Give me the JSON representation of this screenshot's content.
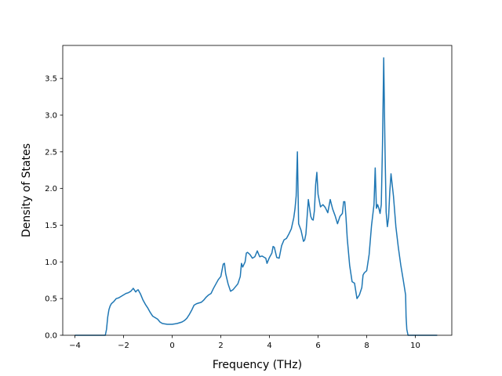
{
  "chart_data": {
    "type": "line",
    "title": "",
    "xlabel": "Frequency (THz)",
    "ylabel": "Density of States",
    "xlim": [
      -4.5,
      11.5
    ],
    "ylim": [
      0,
      3.95
    ],
    "x_ticks": [
      -4,
      -2,
      0,
      2,
      4,
      6,
      8,
      10
    ],
    "x_tick_labels": [
      "−4",
      "−2",
      "0",
      "2",
      "4",
      "6",
      "8",
      "10"
    ],
    "y_ticks": [
      0,
      0.5,
      1.0,
      1.5,
      2.0,
      2.5,
      3.0,
      3.5
    ],
    "y_tick_labels": [
      "0.0",
      "0.5",
      "1.0",
      "1.5",
      "2.0",
      "2.5",
      "3.0",
      "3.5"
    ],
    "grid": false,
    "legend": "none",
    "line_color": "#1f77b4",
    "series": [
      {
        "x": [
          -4.0,
          -3.5,
          -3.0,
          -2.75,
          -2.7,
          -2.65,
          -2.6,
          -2.55,
          -2.5,
          -2.4,
          -2.3,
          -2.2,
          -2.1,
          -2.0,
          -1.9,
          -1.8,
          -1.7,
          -1.6,
          -1.5,
          -1.45,
          -1.4,
          -1.3,
          -1.25,
          -1.2,
          -1.1,
          -1.0,
          -0.9,
          -0.8,
          -0.7,
          -0.6,
          -0.5,
          -0.4,
          -0.2,
          0.0,
          0.2,
          0.4,
          0.5,
          0.6,
          0.7,
          0.8,
          0.9,
          1.0,
          1.1,
          1.2,
          1.3,
          1.4,
          1.5,
          1.6,
          1.7,
          1.8,
          1.9,
          2.0,
          2.1,
          2.15,
          2.2,
          2.3,
          2.4,
          2.5,
          2.6,
          2.7,
          2.8,
          2.85,
          2.9,
          3.0,
          3.05,
          3.1,
          3.2,
          3.3,
          3.4,
          3.5,
          3.6,
          3.7,
          3.8,
          3.85,
          3.9,
          4.0,
          4.1,
          4.15,
          4.2,
          4.3,
          4.4,
          4.5,
          4.6,
          4.7,
          4.8,
          4.9,
          5.0,
          5.05,
          5.1,
          5.15,
          5.2,
          5.3,
          5.4,
          5.45,
          5.5,
          5.6,
          5.7,
          5.75,
          5.8,
          5.85,
          5.9,
          5.95,
          6.0,
          6.1,
          6.2,
          6.3,
          6.4,
          6.5,
          6.6,
          6.7,
          6.8,
          6.9,
          7.0,
          7.05,
          7.1,
          7.15,
          7.2,
          7.3,
          7.4,
          7.5,
          7.6,
          7.7,
          7.8,
          7.85,
          7.9,
          8.0,
          8.1,
          8.2,
          8.3,
          8.35,
          8.4,
          8.45,
          8.5,
          8.55,
          8.6,
          8.65,
          8.7,
          8.75,
          8.8,
          8.85,
          8.9,
          8.95,
          9.0,
          9.1,
          9.2,
          9.3,
          9.4,
          9.5,
          9.6,
          9.62,
          9.65,
          9.7,
          10.0,
          10.5,
          10.9
        ],
        "y": [
          0.0,
          0.0,
          0.0,
          0.0,
          0.08,
          0.25,
          0.35,
          0.4,
          0.43,
          0.46,
          0.5,
          0.51,
          0.53,
          0.55,
          0.57,
          0.58,
          0.6,
          0.64,
          0.59,
          0.61,
          0.62,
          0.56,
          0.52,
          0.48,
          0.42,
          0.37,
          0.31,
          0.26,
          0.24,
          0.22,
          0.18,
          0.16,
          0.15,
          0.15,
          0.16,
          0.18,
          0.2,
          0.23,
          0.28,
          0.34,
          0.41,
          0.43,
          0.44,
          0.45,
          0.48,
          0.52,
          0.55,
          0.57,
          0.64,
          0.7,
          0.76,
          0.8,
          0.97,
          0.98,
          0.84,
          0.7,
          0.6,
          0.62,
          0.66,
          0.7,
          0.8,
          0.98,
          0.93,
          1.0,
          1.12,
          1.13,
          1.1,
          1.05,
          1.07,
          1.15,
          1.07,
          1.08,
          1.06,
          1.05,
          0.98,
          1.06,
          1.12,
          1.21,
          1.2,
          1.06,
          1.05,
          1.22,
          1.3,
          1.32,
          1.38,
          1.45,
          1.6,
          1.72,
          1.9,
          2.5,
          1.52,
          1.43,
          1.28,
          1.3,
          1.38,
          1.85,
          1.62,
          1.58,
          1.57,
          1.7,
          2.05,
          2.22,
          1.92,
          1.75,
          1.78,
          1.74,
          1.67,
          1.85,
          1.72,
          1.63,
          1.52,
          1.62,
          1.66,
          1.82,
          1.82,
          1.6,
          1.32,
          0.95,
          0.73,
          0.71,
          0.5,
          0.55,
          0.65,
          0.82,
          0.85,
          0.88,
          1.1,
          1.5,
          1.78,
          2.28,
          1.73,
          1.78,
          1.73,
          1.66,
          1.78,
          2.6,
          3.78,
          2.6,
          1.68,
          1.48,
          1.6,
          1.96,
          2.2,
          1.9,
          1.48,
          1.2,
          0.96,
          0.76,
          0.55,
          0.25,
          0.08,
          0.0,
          0.0,
          0.0,
          0.0
        ]
      }
    ]
  }
}
